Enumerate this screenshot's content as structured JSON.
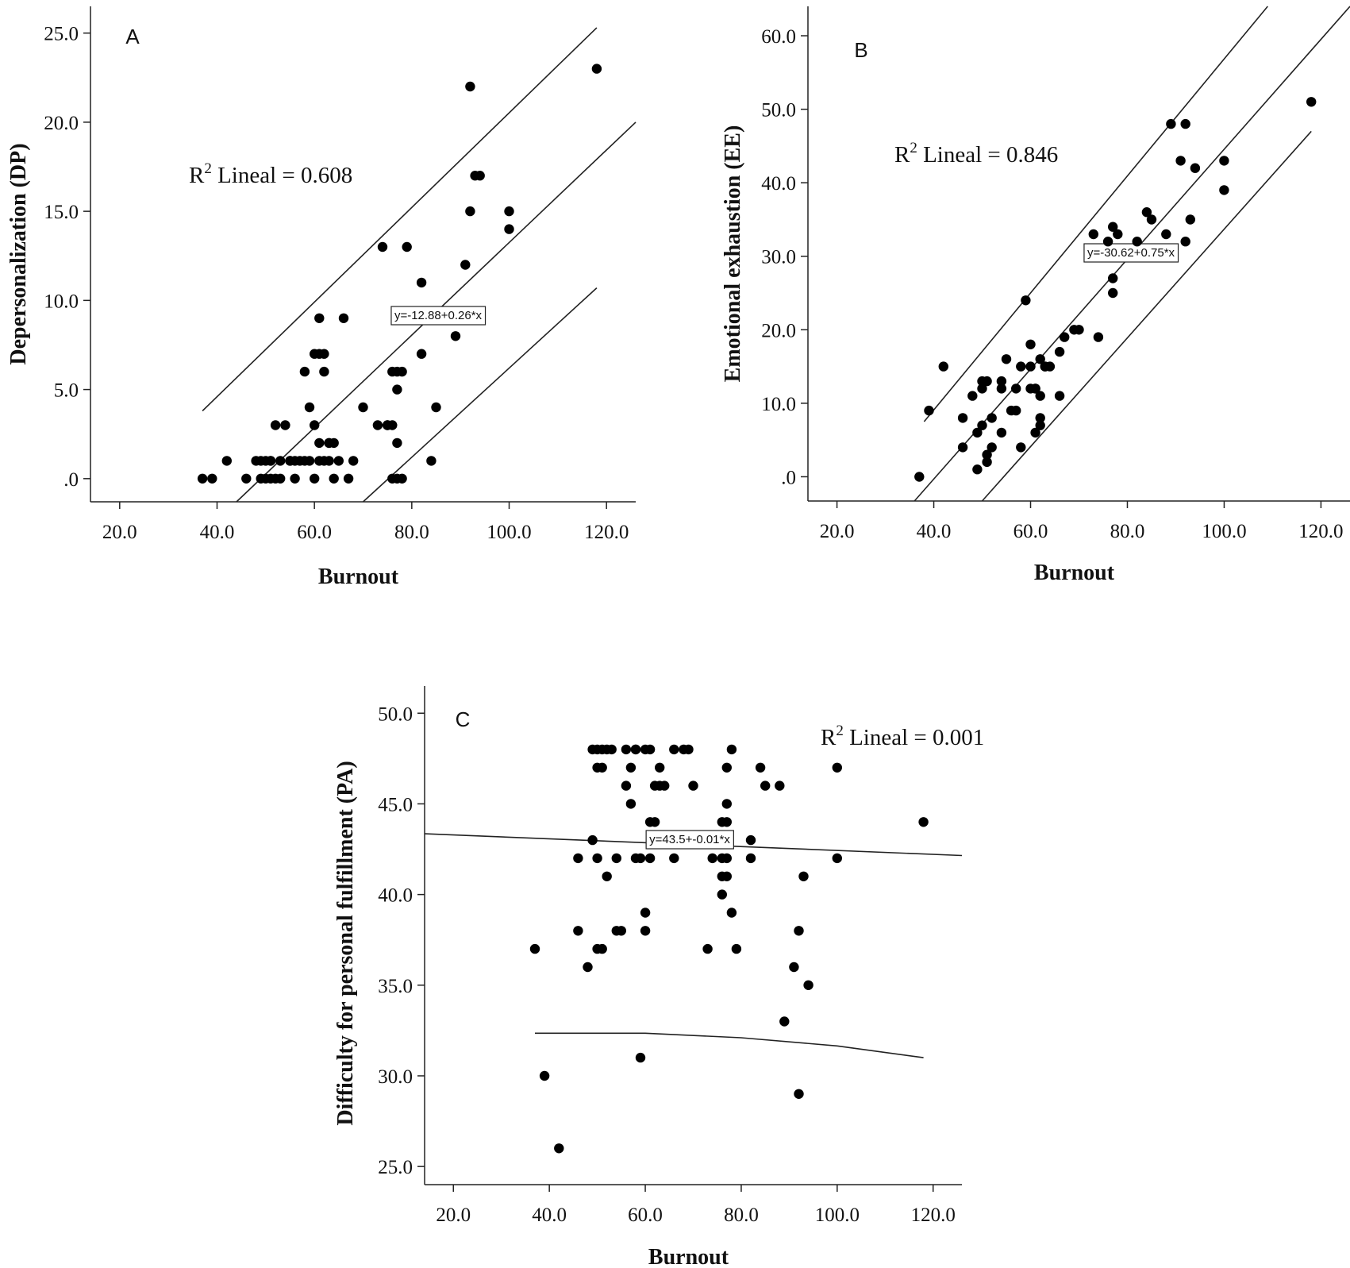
{
  "chart_data": [
    {
      "type": "scatter",
      "panel": "A",
      "xlabel": "Burnout",
      "ylabel": "Depersonalization (DP)",
      "xlim": [
        14,
        126
      ],
      "ylim": [
        -1.3,
        26.5
      ],
      "xticks": [
        "20.0",
        "40.0",
        "60.0",
        "80.0",
        "100.0",
        "120.0"
      ],
      "yticks": [
        ".0",
        "5.0",
        "10.0",
        "15.0",
        "20.0",
        "25.0"
      ],
      "r2": {
        "prefix": "R",
        "sup": "2",
        "text": " Lineal = 0.608"
      },
      "equation": "y=-12.88+0.26*x",
      "fit_lines": [
        {
          "role": "fit",
          "points": [
            [
              44,
              -1.3
            ],
            [
              126,
              20.0
            ]
          ]
        },
        {
          "role": "upper",
          "points": [
            [
              37,
              3.8
            ],
            [
              118,
              25.3
            ]
          ]
        },
        {
          "role": "lower",
          "points": [
            [
              70,
              -1.3
            ],
            [
              118,
              10.7
            ]
          ]
        }
      ],
      "x": [
        37,
        39,
        42,
        46,
        48,
        49,
        49,
        50,
        50,
        51,
        51,
        51,
        52,
        52,
        53,
        53,
        54,
        55,
        55,
        56,
        56,
        57,
        58,
        58,
        59,
        59,
        60,
        60,
        60,
        61,
        61,
        61,
        61,
        62,
        62,
        62,
        63,
        63,
        63,
        64,
        64,
        65,
        66,
        67,
        68,
        70,
        73,
        74,
        75,
        75,
        76,
        76,
        76,
        77,
        77,
        77,
        77,
        78,
        78,
        79,
        82,
        82,
        84,
        85,
        89,
        91,
        92,
        92,
        93,
        94,
        100,
        100,
        118
      ],
      "y": [
        0,
        0,
        1,
        0,
        1,
        0,
        1,
        0,
        1,
        0,
        1,
        1,
        0,
        3,
        0,
        1,
        3,
        1,
        1,
        1,
        0,
        1,
        1,
        6,
        4,
        1,
        0,
        3,
        7,
        7,
        9,
        2,
        1,
        7,
        1,
        6,
        2,
        2,
        1,
        2,
        0,
        1,
        9,
        0,
        1,
        4,
        3,
        13,
        3,
        3,
        0,
        3,
        6,
        5,
        2,
        6,
        0,
        6,
        0,
        13,
        7,
        11,
        1,
        4,
        8,
        12,
        22,
        15,
        17,
        17,
        15,
        14,
        23
      ]
    },
    {
      "type": "scatter",
      "panel": "B",
      "xlabel": "Burnout",
      "ylabel": "Emotional exhaustion (EE)",
      "xlim": [
        14,
        126
      ],
      "ylim": [
        -3.3,
        64
      ],
      "xticks": [
        "20.0",
        "40.0",
        "60.0",
        "80.0",
        "100.0",
        "120.0"
      ],
      "yticks": [
        ".0",
        "10.0",
        "20.0",
        "30.0",
        "40.0",
        "50.0",
        "60.0"
      ],
      "r2": {
        "prefix": "R",
        "sup": "2",
        "text": " Lineal = 0.846"
      },
      "equation": "y=-30.62+0.75*x",
      "fit_lines": [
        {
          "role": "fit",
          "points": [
            [
              36,
              -3.3
            ],
            [
              126,
              64.0
            ]
          ]
        },
        {
          "role": "upper",
          "points": [
            [
              38,
              7.5
            ],
            [
              109,
              64.0
            ]
          ]
        },
        {
          "role": "lower",
          "points": [
            [
              50,
              -3.3
            ],
            [
              118,
              47.0
            ]
          ]
        }
      ],
      "x": [
        37,
        39,
        42,
        46,
        46,
        48,
        49,
        49,
        50,
        50,
        50,
        51,
        51,
        51,
        52,
        52,
        54,
        54,
        54,
        55,
        56,
        57,
        57,
        58,
        58,
        59,
        60,
        60,
        60,
        61,
        61,
        61,
        62,
        62,
        62,
        62,
        63,
        63,
        64,
        66,
        66,
        67,
        69,
        70,
        73,
        74,
        76,
        77,
        77,
        77,
        78,
        82,
        84,
        85,
        88,
        89,
        91,
        92,
        92,
        93,
        94,
        100,
        100,
        118
      ],
      "y": [
        0,
        9,
        15,
        8,
        4,
        11,
        6,
        1,
        7,
        13,
        12,
        3,
        2,
        13,
        8,
        4,
        13,
        12,
        6,
        16,
        9,
        12,
        9,
        15,
        4,
        24,
        18,
        15,
        12,
        12,
        6,
        12,
        11,
        7,
        8,
        16,
        15,
        15,
        15,
        11,
        17,
        19,
        20,
        20,
        33,
        19,
        32,
        27,
        25,
        34,
        33,
        32,
        36,
        35,
        33,
        48,
        43,
        48,
        32,
        35,
        42,
        43,
        39,
        51
      ]
    },
    {
      "type": "scatter",
      "panel": "C",
      "xlabel": "Burnout",
      "ylabel": "Difficulty for personal fulfillment (PA)",
      "xlim": [
        14,
        126
      ],
      "ylim": [
        24,
        51.5
      ],
      "xticks": [
        "20.0",
        "40.0",
        "60.0",
        "80.0",
        "100.0",
        "120.0"
      ],
      "yticks": [
        "25.0",
        "30.0",
        "35.0",
        "40.0",
        "45.0",
        "50.0"
      ],
      "r2": {
        "prefix": "R",
        "sup": "2",
        "text": " Lineal = 0.001"
      },
      "equation": "y=43.5+-0.01*x",
      "fit_lines": [
        {
          "role": "fit",
          "points": [
            [
              14,
              43.35
            ],
            [
              126,
              42.15
            ]
          ]
        },
        {
          "role": "lower",
          "points": [
            [
              37,
              32.35
            ],
            [
              60,
              32.35
            ],
            [
              80,
              32.1
            ],
            [
              100,
              31.65
            ],
            [
              118,
              31.0
            ]
          ]
        }
      ],
      "x": [
        37,
        39,
        42,
        46,
        46,
        48,
        49,
        49,
        50,
        50,
        50,
        50,
        51,
        51,
        51,
        52,
        52,
        53,
        54,
        54,
        55,
        56,
        56,
        57,
        57,
        58,
        58,
        58,
        59,
        59,
        60,
        60,
        60,
        61,
        61,
        61,
        62,
        62,
        63,
        63,
        64,
        66,
        66,
        68,
        69,
        70,
        73,
        74,
        76,
        76,
        76,
        76,
        77,
        77,
        77,
        77,
        77,
        78,
        78,
        79,
        82,
        82,
        84,
        85,
        88,
        89,
        91,
        92,
        92,
        93,
        94,
        100,
        100,
        118
      ],
      "y": [
        37,
        30,
        26,
        42,
        38,
        36,
        43,
        48,
        48,
        47,
        42,
        37,
        48,
        47,
        37,
        41,
        48,
        48,
        38,
        42,
        38,
        48,
        46,
        47,
        45,
        48,
        48,
        42,
        42,
        31,
        48,
        39,
        38,
        48,
        44,
        42,
        46,
        44,
        46,
        47,
        46,
        48,
        42,
        48,
        48,
        46,
        37,
        42,
        42,
        41,
        40,
        44,
        45,
        44,
        47,
        42,
        41,
        48,
        39,
        37,
        43,
        42,
        47,
        46,
        46,
        33,
        36,
        38,
        29,
        41,
        35,
        47,
        42,
        44
      ]
    }
  ]
}
